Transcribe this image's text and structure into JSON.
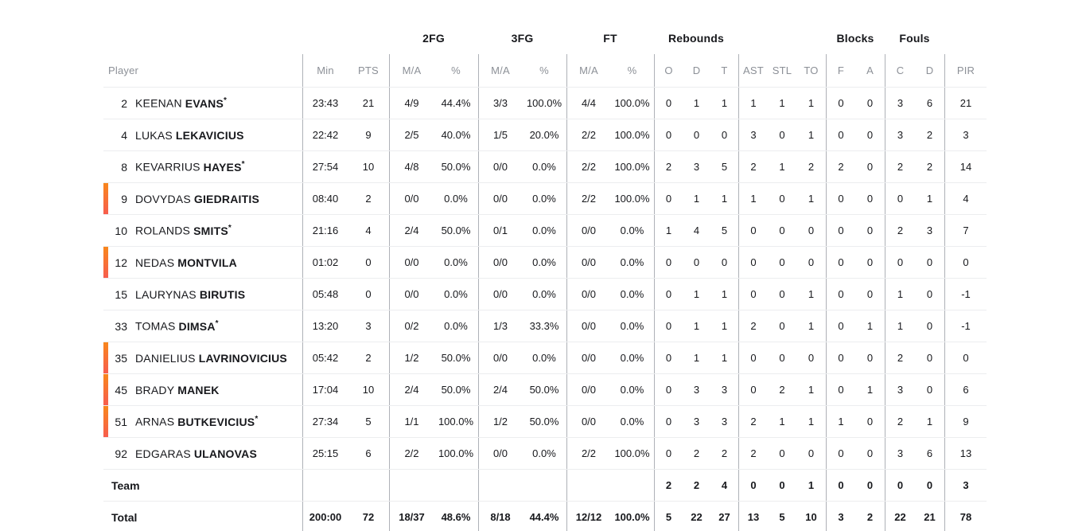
{
  "colors": {
    "accent_bar_top": "#F8871C",
    "accent_bar_bottom": "#F75D4E",
    "header_text": "#8C9097",
    "body_text": "#17181C"
  },
  "table": {
    "starter_mark": "*",
    "groups": [
      {
        "label": "2FG"
      },
      {
        "label": "3FG"
      },
      {
        "label": "FT"
      },
      {
        "label": "Rebounds"
      },
      {
        "label": "Blocks"
      },
      {
        "label": "Fouls"
      }
    ],
    "columns": [
      "Player",
      "Min",
      "PTS",
      "M/A",
      "%",
      "M/A",
      "%",
      "M/A",
      "%",
      "O",
      "D",
      "T",
      "AST",
      "STL",
      "TO",
      "F",
      "A",
      "C",
      "D",
      "PIR"
    ],
    "rows": [
      {
        "number": "2",
        "first": "KEENAN",
        "last": "EVANS",
        "starter": true,
        "oncourt": false,
        "min": "23:43",
        "pts": "21",
        "fg2": "4/9",
        "fg2pct": "44.4%",
        "fg3": "3/3",
        "fg3pct": "100.0%",
        "ft": "4/4",
        "ftpct": "100.0%",
        "ro": "0",
        "rd": "1",
        "rt": "1",
        "ast": "1",
        "stl": "1",
        "to": "1",
        "bf": "0",
        "ba": "0",
        "fc": "3",
        "fd": "6",
        "pir": "21"
      },
      {
        "number": "4",
        "first": "LUKAS",
        "last": "LEKAVICIUS",
        "starter": false,
        "oncourt": false,
        "min": "22:42",
        "pts": "9",
        "fg2": "2/5",
        "fg2pct": "40.0%",
        "fg3": "1/5",
        "fg3pct": "20.0%",
        "ft": "2/2",
        "ftpct": "100.0%",
        "ro": "0",
        "rd": "0",
        "rt": "0",
        "ast": "3",
        "stl": "0",
        "to": "1",
        "bf": "0",
        "ba": "0",
        "fc": "3",
        "fd": "2",
        "pir": "3"
      },
      {
        "number": "8",
        "first": "KEVARRIUS",
        "last": "HAYES",
        "starter": true,
        "oncourt": false,
        "min": "27:54",
        "pts": "10",
        "fg2": "4/8",
        "fg2pct": "50.0%",
        "fg3": "0/0",
        "fg3pct": "0.0%",
        "ft": "2/2",
        "ftpct": "100.0%",
        "ro": "2",
        "rd": "3",
        "rt": "5",
        "ast": "2",
        "stl": "1",
        "to": "2",
        "bf": "2",
        "ba": "0",
        "fc": "2",
        "fd": "2",
        "pir": "14"
      },
      {
        "number": "9",
        "first": "DOVYDAS",
        "last": "GIEDRAITIS",
        "starter": false,
        "oncourt": true,
        "min": "08:40",
        "pts": "2",
        "fg2": "0/0",
        "fg2pct": "0.0%",
        "fg3": "0/0",
        "fg3pct": "0.0%",
        "ft": "2/2",
        "ftpct": "100.0%",
        "ro": "0",
        "rd": "1",
        "rt": "1",
        "ast": "1",
        "stl": "0",
        "to": "1",
        "bf": "0",
        "ba": "0",
        "fc": "0",
        "fd": "1",
        "pir": "4"
      },
      {
        "number": "10",
        "first": "ROLANDS",
        "last": "SMITS",
        "starter": true,
        "oncourt": false,
        "min": "21:16",
        "pts": "4",
        "fg2": "2/4",
        "fg2pct": "50.0%",
        "fg3": "0/1",
        "fg3pct": "0.0%",
        "ft": "0/0",
        "ftpct": "0.0%",
        "ro": "1",
        "rd": "4",
        "rt": "5",
        "ast": "0",
        "stl": "0",
        "to": "0",
        "bf": "0",
        "ba": "0",
        "fc": "2",
        "fd": "3",
        "pir": "7"
      },
      {
        "number": "12",
        "first": "NEDAS",
        "last": "MONTVILA",
        "starter": false,
        "oncourt": true,
        "min": "01:02",
        "pts": "0",
        "fg2": "0/0",
        "fg2pct": "0.0%",
        "fg3": "0/0",
        "fg3pct": "0.0%",
        "ft": "0/0",
        "ftpct": "0.0%",
        "ro": "0",
        "rd": "0",
        "rt": "0",
        "ast": "0",
        "stl": "0",
        "to": "0",
        "bf": "0",
        "ba": "0",
        "fc": "0",
        "fd": "0",
        "pir": "0"
      },
      {
        "number": "15",
        "first": "LAURYNAS",
        "last": "BIRUTIS",
        "starter": false,
        "oncourt": false,
        "min": "05:48",
        "pts": "0",
        "fg2": "0/0",
        "fg2pct": "0.0%",
        "fg3": "0/0",
        "fg3pct": "0.0%",
        "ft": "0/0",
        "ftpct": "0.0%",
        "ro": "0",
        "rd": "1",
        "rt": "1",
        "ast": "0",
        "stl": "0",
        "to": "1",
        "bf": "0",
        "ba": "0",
        "fc": "1",
        "fd": "0",
        "pir": "-1"
      },
      {
        "number": "33",
        "first": "TOMAS",
        "last": "DIMSA",
        "starter": true,
        "oncourt": false,
        "min": "13:20",
        "pts": "3",
        "fg2": "0/2",
        "fg2pct": "0.0%",
        "fg3": "1/3",
        "fg3pct": "33.3%",
        "ft": "0/0",
        "ftpct": "0.0%",
        "ro": "0",
        "rd": "1",
        "rt": "1",
        "ast": "2",
        "stl": "0",
        "to": "1",
        "bf": "0",
        "ba": "1",
        "fc": "1",
        "fd": "0",
        "pir": "-1"
      },
      {
        "number": "35",
        "first": "DANIELIUS",
        "last": "LAVRINOVICIUS",
        "starter": false,
        "oncourt": true,
        "min": "05:42",
        "pts": "2",
        "fg2": "1/2",
        "fg2pct": "50.0%",
        "fg3": "0/0",
        "fg3pct": "0.0%",
        "ft": "0/0",
        "ftpct": "0.0%",
        "ro": "0",
        "rd": "1",
        "rt": "1",
        "ast": "0",
        "stl": "0",
        "to": "0",
        "bf": "0",
        "ba": "0",
        "fc": "2",
        "fd": "0",
        "pir": "0"
      },
      {
        "number": "45",
        "first": "BRADY",
        "last": "MANEK",
        "starter": false,
        "oncourt": true,
        "min": "17:04",
        "pts": "10",
        "fg2": "2/4",
        "fg2pct": "50.0%",
        "fg3": "2/4",
        "fg3pct": "50.0%",
        "ft": "0/0",
        "ftpct": "0.0%",
        "ro": "0",
        "rd": "3",
        "rt": "3",
        "ast": "0",
        "stl": "2",
        "to": "1",
        "bf": "0",
        "ba": "1",
        "fc": "3",
        "fd": "0",
        "pir": "6"
      },
      {
        "number": "51",
        "first": "ARNAS",
        "last": "BUTKEVICIUS",
        "starter": true,
        "oncourt": true,
        "min": "27:34",
        "pts": "5",
        "fg2": "1/1",
        "fg2pct": "100.0%",
        "fg3": "1/2",
        "fg3pct": "50.0%",
        "ft": "0/0",
        "ftpct": "0.0%",
        "ro": "0",
        "rd": "3",
        "rt": "3",
        "ast": "2",
        "stl": "1",
        "to": "1",
        "bf": "1",
        "ba": "0",
        "fc": "2",
        "fd": "1",
        "pir": "9"
      },
      {
        "number": "92",
        "first": "EDGARAS",
        "last": "ULANOVAS",
        "starter": false,
        "oncourt": false,
        "min": "25:15",
        "pts": "6",
        "fg2": "2/2",
        "fg2pct": "100.0%",
        "fg3": "0/0",
        "fg3pct": "0.0%",
        "ft": "2/2",
        "ftpct": "100.0%",
        "ro": "0",
        "rd": "2",
        "rt": "2",
        "ast": "2",
        "stl": "0",
        "to": "0",
        "bf": "0",
        "ba": "0",
        "fc": "3",
        "fd": "6",
        "pir": "13"
      },
      {
        "label": "Team",
        "bold": true,
        "min": "",
        "pts": "",
        "fg2": "",
        "fg2pct": "",
        "fg3": "",
        "fg3pct": "",
        "ft": "",
        "ftpct": "",
        "ro": "2",
        "rd": "2",
        "rt": "4",
        "ast": "0",
        "stl": "0",
        "to": "1",
        "bf": "0",
        "ba": "0",
        "fc": "0",
        "fd": "0",
        "pir": "3"
      },
      {
        "label": "Total",
        "bold": true,
        "min": "200:00",
        "pts": "72",
        "fg2": "18/37",
        "fg2pct": "48.6%",
        "fg3": "8/18",
        "fg3pct": "44.4%",
        "ft": "12/12",
        "ftpct": "100.0%",
        "ro": "5",
        "rd": "22",
        "rt": "27",
        "ast": "13",
        "stl": "5",
        "to": "10",
        "bf": "3",
        "ba": "2",
        "fc": "22",
        "fd": "21",
        "pir": "78"
      }
    ]
  }
}
